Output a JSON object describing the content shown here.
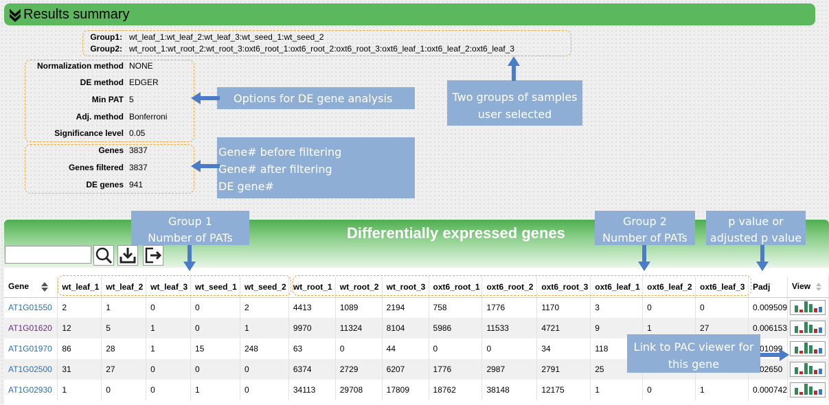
{
  "header": {
    "title": "Results summary"
  },
  "groups": [
    {
      "label": "Group1:",
      "value": "wt_leaf_1:wt_leaf_2:wt_leaf_3:wt_seed_1:wt_seed_2"
    },
    {
      "label": "Group2:",
      "value": "wt_root_1:wt_root_2:wt_root_3:oxt6_root_1:oxt6_root_2:oxt6_root_3:oxt6_leaf_1:oxt6_leaf_2:oxt6_leaf_3"
    }
  ],
  "options": [
    {
      "label": "Normalization method",
      "value": "NONE"
    },
    {
      "label": "DE method",
      "value": "EDGER"
    },
    {
      "label": "Min PAT",
      "value": "5"
    },
    {
      "label": "Adj. method",
      "value": "Bonferroni"
    },
    {
      "label": "Significance level",
      "value": "0.05"
    }
  ],
  "counts": [
    {
      "label": "Genes",
      "value": "3837"
    },
    {
      "label": "Genes filtered",
      "value": "3837"
    },
    {
      "label": "DE genes",
      "value": "941"
    }
  ],
  "callouts": {
    "options": "Options for DE gene analysis",
    "groups_line1": "Two groups of samples",
    "groups_line2": "user selected",
    "counts_line1": "Gene# before filtering",
    "counts_line2": "Gene# after filtering",
    "counts_line3": "DE gene#",
    "group1_line1": "Group 1",
    "group1_line2": "Number of PATs",
    "group2_line1": "Group 2",
    "group2_line2": "Number of PATs",
    "padj_line1": "p value or",
    "padj_line2": "adjusted p value",
    "viewer_line1": "Link to PAC viewer for",
    "viewer_line2": "this gene"
  },
  "table_section": {
    "title": "Differentially expressed genes",
    "search_placeholder": "",
    "icons": [
      "search-icon",
      "download-icon",
      "export-icon"
    ]
  },
  "columns": [
    "Gene",
    "wt_leaf_1",
    "wt_leaf_2",
    "wt_leaf_3",
    "wt_seed_1",
    "wt_seed_2",
    "wt_root_1",
    "wt_root_2",
    "wt_root_3",
    "oxt6_root_1",
    "oxt6_root_2",
    "oxt6_root_3",
    "oxt6_leaf_1",
    "oxt6_leaf_2",
    "oxt6_leaf_3",
    "Padj",
    "View"
  ],
  "rows": [
    {
      "gene": "AT1G01550",
      "vals": [
        "2",
        "1",
        "0",
        "0",
        "2",
        "4413",
        "1089",
        "2194",
        "758",
        "1776",
        "1170",
        "3",
        "0",
        "0"
      ],
      "padj": "0.009509"
    },
    {
      "gene": "AT1G01620",
      "vals": [
        "12",
        "5",
        "1",
        "0",
        "1",
        "9970",
        "11324",
        "8104",
        "5986",
        "11533",
        "4721",
        "9",
        "1",
        "27"
      ],
      "padj": "0.006153"
    },
    {
      "gene": "AT1G01970",
      "vals": [
        "86",
        "28",
        "1",
        "15",
        "248",
        "63",
        "0",
        "44",
        "0",
        "0",
        "34",
        "118",
        "",
        ""
      ],
      "padj": "0.01099"
    },
    {
      "gene": "AT1G02500",
      "vals": [
        "31",
        "27",
        "0",
        "0",
        "0",
        "6374",
        "2729",
        "6207",
        "1776",
        "2987",
        "2791",
        "25",
        "",
        ""
      ],
      "padj": "0.02650"
    },
    {
      "gene": "AT1G02930",
      "vals": [
        "1",
        "0",
        "0",
        "1",
        "0",
        "34113",
        "29708",
        "17809",
        "18762",
        "38148",
        "12175",
        "1",
        "0",
        "1"
      ],
      "padj": "0.000742"
    }
  ],
  "colors": {
    "header_green": "#5cb85c",
    "callout_blue": "#8faed6",
    "dash_orange": "#f0a830",
    "arrow_blue": "#4a7cc9"
  }
}
